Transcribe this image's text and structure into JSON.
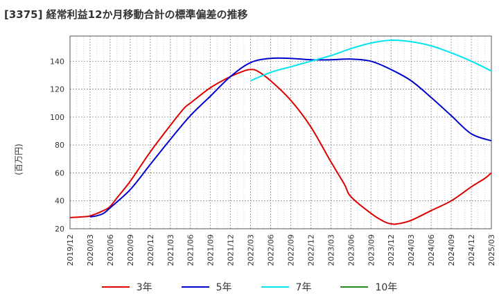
{
  "title": "[3375]  経常利益12か月移動合計の標準偏差の推移",
  "ylabel": "(百万円)",
  "chart_data": {
    "type": "line",
    "x_ticks": [
      "2019/12",
      "2020/03",
      "2020/06",
      "2020/09",
      "2020/12",
      "2021/03",
      "2021/06",
      "2021/09",
      "2021/12",
      "2022/03",
      "2022/06",
      "2022/09",
      "2022/12",
      "2023/03",
      "2023/06",
      "2023/09",
      "2023/12",
      "2024/03",
      "2024/06",
      "2024/09",
      "2024/12",
      "2025/03"
    ],
    "y_ticks": [
      20,
      40,
      60,
      80,
      100,
      120,
      140
    ],
    "ylim": [
      20,
      158
    ],
    "grid": true,
    "legend_position": "bottom",
    "series": [
      {
        "name": "3年",
        "color": "#dd0000",
        "points": [
          [
            "2019/12",
            28
          ],
          [
            "2020/02",
            28.6
          ],
          [
            "2020/03",
            29.2
          ],
          [
            "2020/05",
            33
          ],
          [
            "2020/06",
            36
          ],
          [
            "2020/07",
            42
          ],
          [
            "2020/09",
            54
          ],
          [
            "2020/12",
            75
          ],
          [
            "2021/03",
            94
          ],
          [
            "2021/05",
            106
          ],
          [
            "2021/06",
            110
          ],
          [
            "2021/09",
            121
          ],
          [
            "2021/12",
            129
          ],
          [
            "2022/02",
            133
          ],
          [
            "2022/03",
            134
          ],
          [
            "2022/04",
            133
          ],
          [
            "2022/06",
            126
          ],
          [
            "2022/09",
            112
          ],
          [
            "2022/12",
            93
          ],
          [
            "2023/03",
            68
          ],
          [
            "2023/05",
            52
          ],
          [
            "2023/06",
            43
          ],
          [
            "2023/09",
            31
          ],
          [
            "2023/11",
            25
          ],
          [
            "2023/12",
            23.5
          ],
          [
            "2024/01",
            23.5
          ],
          [
            "2024/03",
            26
          ],
          [
            "2024/06",
            33
          ],
          [
            "2024/09",
            40
          ],
          [
            "2024/12",
            50
          ],
          [
            "2025/02",
            56
          ],
          [
            "2025/03",
            60
          ]
        ]
      },
      {
        "name": "5年",
        "color": "#0000cc",
        "points": [
          [
            "2020/03",
            28.5
          ],
          [
            "2020/04",
            29.3
          ],
          [
            "2020/05",
            31
          ],
          [
            "2020/06",
            35
          ],
          [
            "2020/09",
            48
          ],
          [
            "2020/12",
            66
          ],
          [
            "2021/03",
            84
          ],
          [
            "2021/06",
            101
          ],
          [
            "2021/09",
            115
          ],
          [
            "2021/12",
            129
          ],
          [
            "2022/03",
            139
          ],
          [
            "2022/06",
            142
          ],
          [
            "2022/09",
            142
          ],
          [
            "2022/12",
            141
          ],
          [
            "2023/03",
            141
          ],
          [
            "2023/06",
            141.5
          ],
          [
            "2023/09",
            140
          ],
          [
            "2023/12",
            134
          ],
          [
            "2024/03",
            126
          ],
          [
            "2024/06",
            114
          ],
          [
            "2024/09",
            101
          ],
          [
            "2024/12",
            88
          ],
          [
            "2025/03",
            83
          ]
        ]
      },
      {
        "name": "7年",
        "color": "#00e5ee",
        "points": [
          [
            "2022/03",
            126
          ],
          [
            "2022/06",
            132
          ],
          [
            "2022/09",
            136
          ],
          [
            "2022/12",
            140
          ],
          [
            "2023/03",
            144
          ],
          [
            "2023/06",
            149
          ],
          [
            "2023/09",
            153
          ],
          [
            "2023/12",
            155
          ],
          [
            "2024/03",
            154
          ],
          [
            "2024/06",
            151
          ],
          [
            "2024/09",
            146
          ],
          [
            "2024/12",
            140
          ],
          [
            "2025/03",
            133
          ]
        ]
      },
      {
        "name": "10年",
        "color": "#228b22",
        "points": []
      }
    ]
  }
}
